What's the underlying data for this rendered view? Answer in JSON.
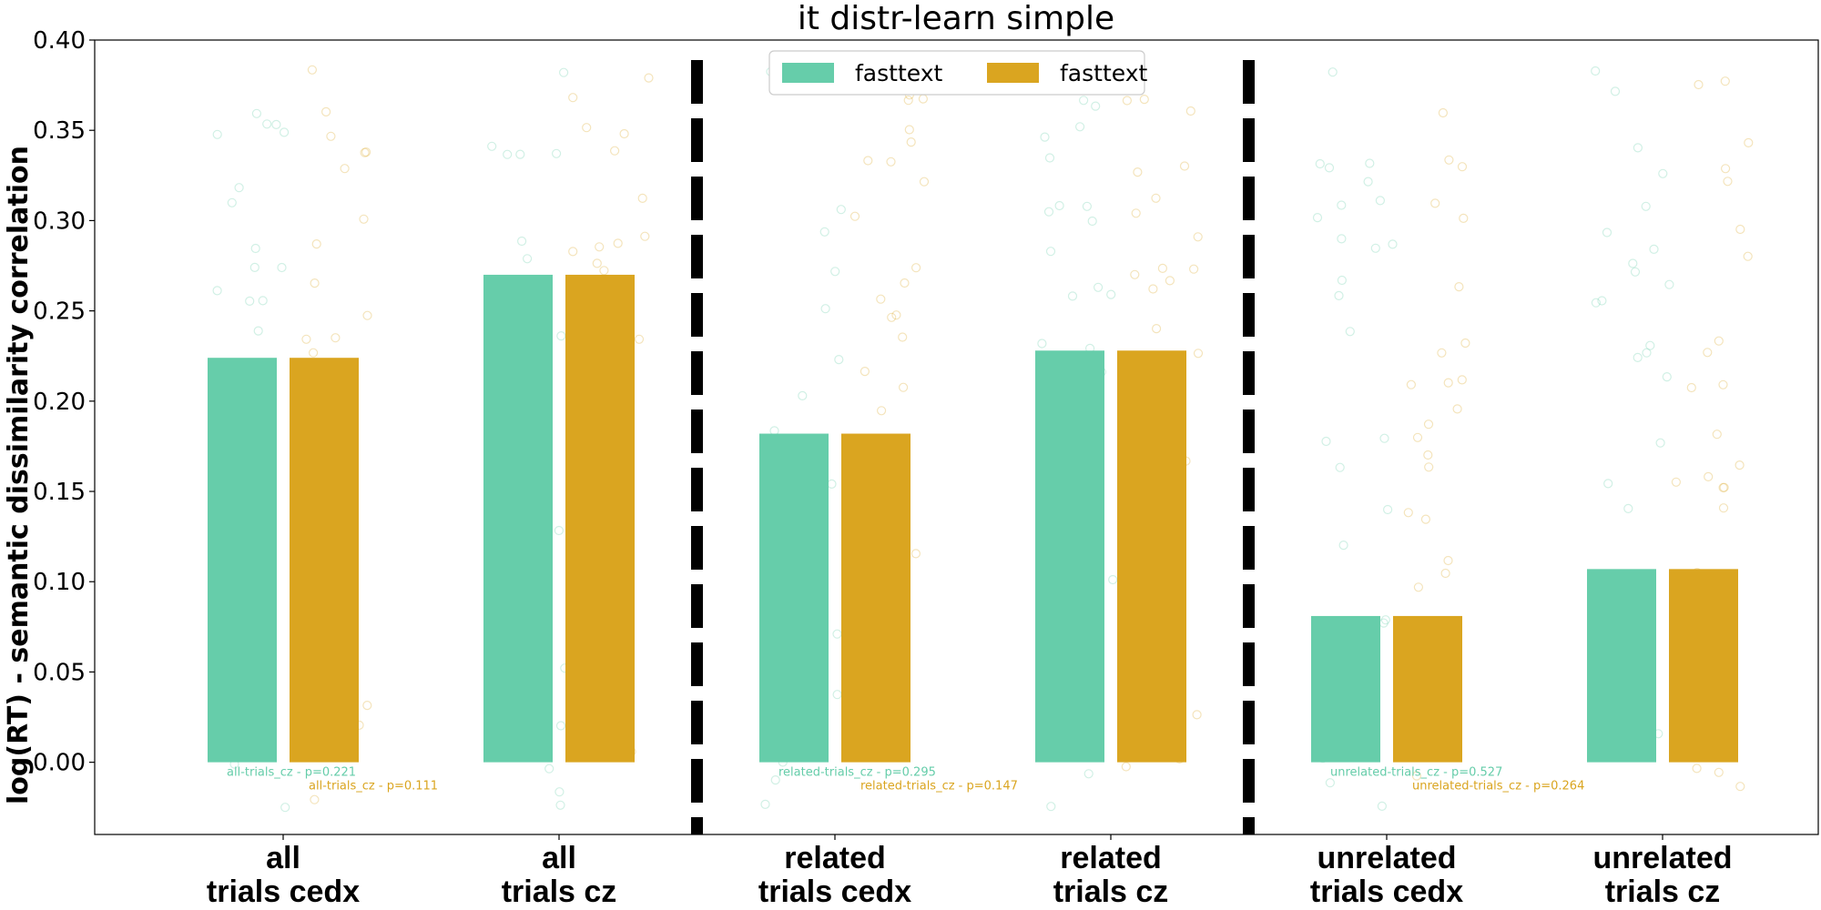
{
  "chart_data": {
    "type": "bar",
    "title": "it distr-learn simple",
    "ylabel": "log(RT) - semantic dissimilarity correlation",
    "xlabel": "",
    "ylim": [
      -0.04,
      0.4
    ],
    "yticks": [
      "0.00",
      "0.05",
      "0.10",
      "0.15",
      "0.20",
      "0.25",
      "0.30",
      "0.35",
      "0.40"
    ],
    "grid": false,
    "legend_position": "top-center",
    "categories": [
      [
        "all",
        "trials cedx"
      ],
      [
        "all",
        "trials cz"
      ],
      [
        "related",
        "trials cedx"
      ],
      [
        "related",
        "trials cz"
      ],
      [
        "unrelated",
        "trials cedx"
      ],
      [
        "unrelated",
        "trials cz"
      ]
    ],
    "group_separators_after": [
      1,
      3
    ],
    "series": [
      {
        "name": "fasttext",
        "color": "#66cdaa",
        "values": [
          0.224,
          0.27,
          0.182,
          0.228,
          0.081,
          0.107
        ]
      },
      {
        "name": "fasttext",
        "color": "#daa520",
        "values": [
          0.224,
          0.27,
          0.182,
          0.228,
          0.081,
          0.107
        ]
      }
    ],
    "annotations": [
      {
        "text": "all-trials_cz - p=0.221",
        "category": 0,
        "series": 0
      },
      {
        "text": "all-trials_cz - p=0.111",
        "category": 0,
        "series": 1
      },
      {
        "text": "related-trials_cz - p=0.295",
        "category": 2,
        "series": 0
      },
      {
        "text": "related-trials_cz - p=0.147",
        "category": 2,
        "series": 1
      },
      {
        "text": "unrelated-trials_cz - p=0.527",
        "category": 4,
        "series": 0
      },
      {
        "text": "unrelated-trials_cz - p=0.264",
        "category": 4,
        "series": 1
      }
    ]
  }
}
